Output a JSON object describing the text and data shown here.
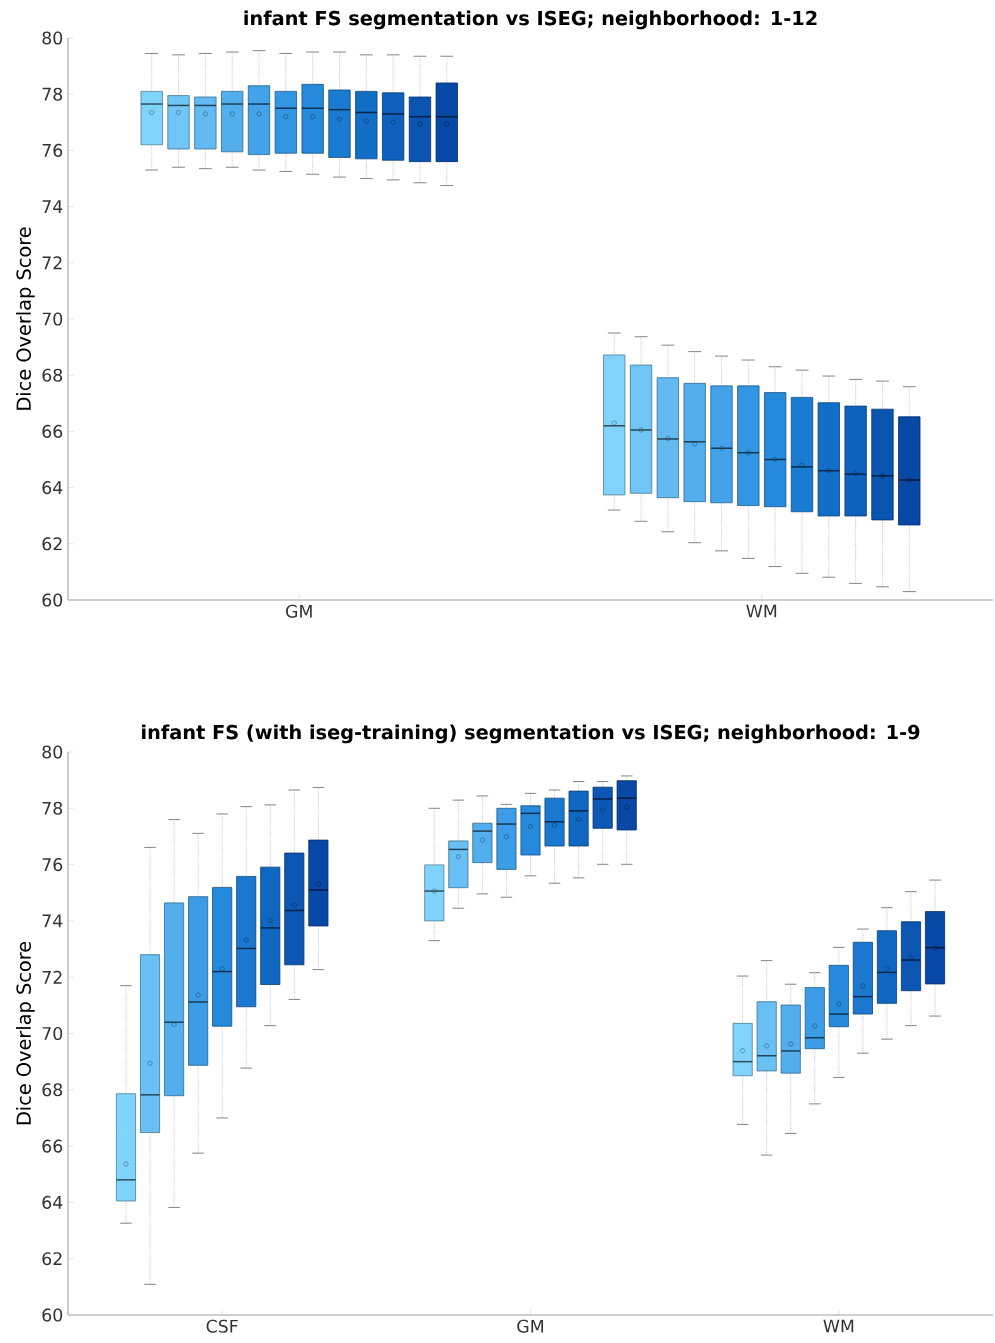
{
  "chart_data": [
    {
      "type": "box",
      "title": "infant FS segmentation vs ISEG; neighborhood: 1-12",
      "ylabel": "Dice Overlap Score",
      "categories": [
        "GM",
        "WM"
      ],
      "ylim": [
        60,
        80
      ],
      "yticks": [
        60,
        62,
        64,
        66,
        68,
        70,
        72,
        74,
        76,
        78,
        80
      ],
      "series": [
        {
          "color": "#80d4fb",
          "boxes": [
            {
              "low": 75.3,
              "q1": 76.2,
              "median": 77.65,
              "q3": 78.1,
              "high": 79.45,
              "mean": 77.35
            },
            {
              "low": 63.2,
              "q1": 63.74,
              "median": 66.2,
              "q3": 68.72,
              "high": 69.5,
              "mean": 66.3
            }
          ]
        },
        {
          "color": "#70c6f6",
          "boxes": [
            {
              "low": 75.4,
              "q1": 76.05,
              "median": 77.6,
              "q3": 77.95,
              "high": 79.4,
              "mean": 77.35
            },
            {
              "low": 62.8,
              "q1": 63.8,
              "median": 66.05,
              "q3": 68.36,
              "high": 69.37,
              "mean": 66.05
            }
          ]
        },
        {
          "color": "#62baf1",
          "boxes": [
            {
              "low": 75.35,
              "q1": 76.05,
              "median": 77.6,
              "q3": 77.9,
              "high": 79.45,
              "mean": 77.3
            },
            {
              "low": 62.43,
              "q1": 63.64,
              "median": 65.73,
              "q3": 67.91,
              "high": 69.07,
              "mean": 65.75
            }
          ]
        },
        {
          "color": "#52aeec",
          "boxes": [
            {
              "low": 75.4,
              "q1": 75.95,
              "median": 77.65,
              "q3": 78.1,
              "high": 79.5,
              "mean": 77.3
            },
            {
              "low": 62.04,
              "q1": 63.5,
              "median": 65.63,
              "q3": 67.71,
              "high": 68.84,
              "mean": 65.55
            }
          ]
        },
        {
          "color": "#43a2e8",
          "boxes": [
            {
              "low": 75.3,
              "q1": 75.85,
              "median": 77.65,
              "q3": 78.3,
              "high": 79.55,
              "mean": 77.3
            },
            {
              "low": 61.75,
              "q1": 63.46,
              "median": 65.4,
              "q3": 67.62,
              "high": 68.68,
              "mean": 65.4
            }
          ]
        },
        {
          "color": "#3396e3",
          "boxes": [
            {
              "low": 75.25,
              "q1": 75.9,
              "median": 77.5,
              "q3": 78.1,
              "high": 79.45,
              "mean": 77.2
            },
            {
              "low": 61.48,
              "q1": 63.36,
              "median": 65.24,
              "q3": 67.62,
              "high": 68.54,
              "mean": 65.24
            }
          ]
        },
        {
          "color": "#2589dc",
          "boxes": [
            {
              "low": 75.15,
              "q1": 75.9,
              "median": 77.5,
              "q3": 78.35,
              "high": 79.5,
              "mean": 77.2
            },
            {
              "low": 61.19,
              "q1": 63.32,
              "median": 65.0,
              "q3": 67.38,
              "high": 68.3,
              "mean": 65.0
            }
          ]
        },
        {
          "color": "#1a7bd2",
          "boxes": [
            {
              "low": 75.05,
              "q1": 75.75,
              "median": 77.45,
              "q3": 78.15,
              "high": 79.5,
              "mean": 77.1
            },
            {
              "low": 60.95,
              "q1": 63.14,
              "median": 64.74,
              "q3": 67.21,
              "high": 68.18,
              "mean": 64.8
            }
          ]
        },
        {
          "color": "#136ec8",
          "boxes": [
            {
              "low": 75.0,
              "q1": 75.7,
              "median": 77.35,
              "q3": 78.1,
              "high": 79.4,
              "mean": 77.05
            },
            {
              "low": 60.81,
              "q1": 62.99,
              "median": 64.6,
              "q3": 67.02,
              "high": 67.97,
              "mean": 64.6
            }
          ]
        },
        {
          "color": "#0e62bd",
          "boxes": [
            {
              "low": 74.95,
              "q1": 75.65,
              "median": 77.3,
              "q3": 78.05,
              "high": 79.4,
              "mean": 77.0
            },
            {
              "low": 60.59,
              "q1": 62.99,
              "median": 64.48,
              "q3": 66.9,
              "high": 67.85,
              "mean": 64.5
            }
          ]
        },
        {
          "color": "#0a55b2",
          "boxes": [
            {
              "low": 74.85,
              "q1": 75.6,
              "median": 77.2,
              "q3": 77.9,
              "high": 79.35,
              "mean": 76.95
            },
            {
              "low": 60.47,
              "q1": 62.85,
              "median": 64.42,
              "q3": 66.79,
              "high": 67.79,
              "mean": 64.42
            }
          ]
        },
        {
          "color": "#0848a6",
          "boxes": [
            {
              "low": 74.75,
              "q1": 75.6,
              "median": 77.2,
              "q3": 78.4,
              "high": 79.35,
              "mean": 76.95
            },
            {
              "low": 60.3,
              "q1": 62.67,
              "median": 64.27,
              "q3": 66.52,
              "high": 67.59,
              "mean": 64.27
            }
          ]
        }
      ]
    },
    {
      "type": "box",
      "title": "infant FS (with iseg-training) segmentation vs ISEG; neighborhood: 1-9",
      "ylabel": "Dice Overlap Score",
      "categories": [
        "CSF",
        "GM",
        "WM"
      ],
      "ylim": [
        60,
        80
      ],
      "yticks": [
        60,
        62,
        64,
        66,
        68,
        70,
        72,
        74,
        76,
        78,
        80
      ],
      "series": [
        {
          "color": "#80d4fb",
          "boxes": [
            {
              "low": 63.26,
              "q1": 64.05,
              "median": 64.8,
              "q3": 67.86,
              "high": 71.7,
              "mean": 65.36
            },
            {
              "low": 73.3,
              "q1": 74.0,
              "median": 75.06,
              "q3": 75.99,
              "high": 78.0,
              "mean": 75.06
            },
            {
              "low": 66.77,
              "q1": 68.5,
              "median": 69.0,
              "q3": 70.36,
              "high": 72.04,
              "mean": 69.39
            }
          ]
        },
        {
          "color": "#68c0f4",
          "boxes": [
            {
              "low": 61.09,
              "q1": 66.48,
              "median": 67.82,
              "q3": 72.8,
              "high": 76.61,
              "mean": 68.94
            },
            {
              "low": 74.45,
              "q1": 75.18,
              "median": 76.54,
              "q3": 76.84,
              "high": 78.29,
              "mean": 76.28
            },
            {
              "low": 65.68,
              "q1": 68.67,
              "median": 69.21,
              "q3": 71.13,
              "high": 72.59,
              "mean": 69.56
            }
          ]
        },
        {
          "color": "#52aeec",
          "boxes": [
            {
              "low": 63.82,
              "q1": 67.79,
              "median": 70.4,
              "q3": 74.64,
              "high": 77.6,
              "mean": 70.32
            },
            {
              "low": 74.96,
              "q1": 76.07,
              "median": 77.19,
              "q3": 77.47,
              "high": 78.44,
              "mean": 76.87
            },
            {
              "low": 66.45,
              "q1": 68.59,
              "median": 69.38,
              "q3": 71.01,
              "high": 71.75,
              "mean": 69.62
            }
          ]
        },
        {
          "color": "#3c9de6",
          "boxes": [
            {
              "low": 65.75,
              "q1": 68.87,
              "median": 71.12,
              "q3": 74.86,
              "high": 77.11,
              "mean": 71.37
            },
            {
              "low": 74.84,
              "q1": 75.83,
              "median": 77.44,
              "q3": 78.0,
              "high": 78.14,
              "mean": 76.99
            },
            {
              "low": 67.5,
              "q1": 69.46,
              "median": 69.85,
              "q3": 71.63,
              "high": 72.16,
              "mean": 70.27
            }
          ]
        },
        {
          "color": "#2589dc",
          "boxes": [
            {
              "low": 67.0,
              "q1": 70.26,
              "median": 72.2,
              "q3": 75.19,
              "high": 77.8,
              "mean": 72.3
            },
            {
              "low": 75.6,
              "q1": 76.34,
              "median": 77.82,
              "q3": 78.09,
              "high": 78.53,
              "mean": 77.35
            },
            {
              "low": 68.44,
              "q1": 70.24,
              "median": 70.69,
              "q3": 72.42,
              "high": 73.06,
              "mean": 71.05
            }
          ]
        },
        {
          "color": "#1a78d0",
          "boxes": [
            {
              "low": 68.77,
              "q1": 70.95,
              "median": 73.02,
              "q3": 75.58,
              "high": 78.06,
              "mean": 73.32
            },
            {
              "low": 75.34,
              "q1": 76.66,
              "median": 77.52,
              "q3": 78.36,
              "high": 78.65,
              "mean": 77.4
            },
            {
              "low": 69.3,
              "q1": 70.69,
              "median": 71.31,
              "q3": 73.24,
              "high": 73.71,
              "mean": 71.69
            }
          ]
        },
        {
          "color": "#1067c2",
          "boxes": [
            {
              "low": 70.28,
              "q1": 71.74,
              "median": 73.75,
              "q3": 75.91,
              "high": 78.12,
              "mean": 74.02
            },
            {
              "low": 75.53,
              "q1": 76.66,
              "median": 77.91,
              "q3": 78.61,
              "high": 78.95,
              "mean": 77.61
            },
            {
              "low": 69.8,
              "q1": 71.07,
              "median": 72.17,
              "q3": 73.65,
              "high": 74.47,
              "mean": 72.32
            }
          ]
        },
        {
          "color": "#0b57b3",
          "boxes": [
            {
              "low": 71.21,
              "q1": 72.44,
              "median": 74.37,
              "q3": 76.41,
              "high": 78.65,
              "mean": 74.57
            },
            {
              "low": 76.01,
              "q1": 77.29,
              "median": 78.33,
              "q3": 78.75,
              "high": 78.95,
              "mean": 77.94
            },
            {
              "low": 70.28,
              "q1": 71.52,
              "median": 72.61,
              "q3": 73.97,
              "high": 75.04,
              "mean": 72.67
            }
          ]
        },
        {
          "color": "#0848a6",
          "boxes": [
            {
              "low": 72.27,
              "q1": 73.82,
              "median": 75.1,
              "q3": 76.87,
              "high": 78.74,
              "mean": 75.3
            },
            {
              "low": 76.01,
              "q1": 77.23,
              "median": 78.36,
              "q3": 78.98,
              "high": 79.15,
              "mean": 78.04
            },
            {
              "low": 70.62,
              "q1": 71.76,
              "median": 73.05,
              "q3": 74.33,
              "high": 75.45,
              "mean": 73.03
            }
          ]
        }
      ]
    }
  ]
}
